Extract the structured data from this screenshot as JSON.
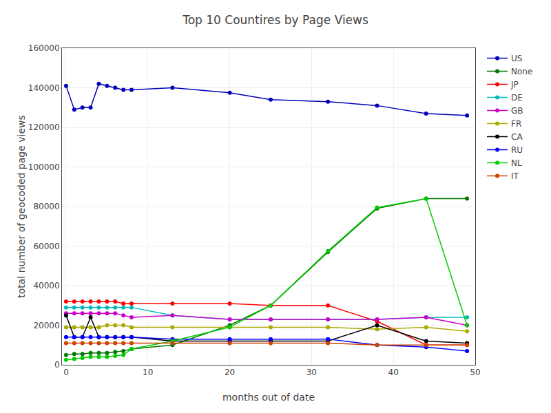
{
  "chart_data": {
    "type": "line",
    "title": "Top 10 Countires by Page Views",
    "x_label": "months out of date",
    "y_label": "total number of geocoded page views",
    "x": [
      0,
      1,
      2,
      3,
      4,
      5,
      6,
      7,
      8,
      13,
      20,
      25,
      32,
      38,
      44,
      49
    ],
    "series": [
      {
        "name": "US",
        "color": "#0000bb",
        "values": [
          141000,
          129000,
          130000,
          130000,
          142000,
          141000,
          140000,
          139000,
          139000,
          140000,
          137500,
          134000,
          133000,
          131000,
          127000,
          126000
        ]
      },
      {
        "name": "None",
        "color": "#007700",
        "values": [
          5000,
          5500,
          5500,
          6000,
          6000,
          6000,
          6500,
          7000,
          8000,
          10000,
          20000,
          30000,
          57000,
          79000,
          84000,
          84000
        ]
      },
      {
        "name": "JP",
        "color": "#ff0000",
        "values": [
          32000,
          32000,
          32000,
          32000,
          32000,
          32000,
          32000,
          31000,
          31000,
          31000,
          31000,
          30000,
          30000,
          22000,
          10000,
          10000
        ]
      },
      {
        "name": "DE",
        "color": "#00bbbb",
        "values": [
          29000,
          29000,
          29000,
          29000,
          29000,
          29000,
          29000,
          29000,
          29000,
          25000,
          23000,
          23000,
          23000,
          23000,
          24000,
          24000
        ]
      },
      {
        "name": "GB",
        "color": "#cc00cc",
        "values": [
          26000,
          26000,
          26000,
          26000,
          26000,
          26000,
          26000,
          25000,
          24000,
          25000,
          23000,
          23000,
          23000,
          23000,
          24000,
          20000
        ]
      },
      {
        "name": "FR",
        "color": "#aaaa00",
        "values": [
          19000,
          19000,
          19000,
          19000,
          19000,
          20000,
          20000,
          20000,
          19000,
          19000,
          19000,
          19000,
          19000,
          18000,
          19000,
          17000
        ]
      },
      {
        "name": "CA",
        "color": "#000000",
        "values": [
          25000,
          14000,
          14000,
          24000,
          14000,
          14000,
          14000,
          14000,
          14000,
          12000,
          12000,
          12000,
          12000,
          20000,
          12000,
          11000
        ]
      },
      {
        "name": "RU",
        "color": "#0000ff",
        "values": [
          14000,
          14000,
          14000,
          14000,
          14000,
          14000,
          14000,
          14000,
          14000,
          13000,
          13000,
          13000,
          13000,
          10000,
          9000,
          7000
        ]
      },
      {
        "name": "NL",
        "color": "#00cc00",
        "values": [
          2500,
          3000,
          3500,
          4000,
          4000,
          4000,
          4500,
          5000,
          8000,
          12000,
          19000,
          30000,
          57500,
          79500,
          84000,
          20000
        ]
      },
      {
        "name": "IT",
        "color": "#cc4400",
        "values": [
          11000,
          11000,
          11000,
          11000,
          11000,
          11000,
          11000,
          11000,
          11000,
          11000,
          11000,
          11000,
          11000,
          10000,
          10000,
          10000
        ]
      }
    ],
    "xlim": [
      -0.5,
      50
    ],
    "ylim": [
      0,
      160000
    ],
    "xticks": [
      0,
      10,
      20,
      30,
      40,
      50
    ],
    "yticks": [
      0,
      20000,
      40000,
      60000,
      80000,
      100000,
      120000,
      140000,
      160000
    ],
    "grid": true,
    "legend": "upper right",
    "marker": "circle",
    "line_style": "solid"
  }
}
